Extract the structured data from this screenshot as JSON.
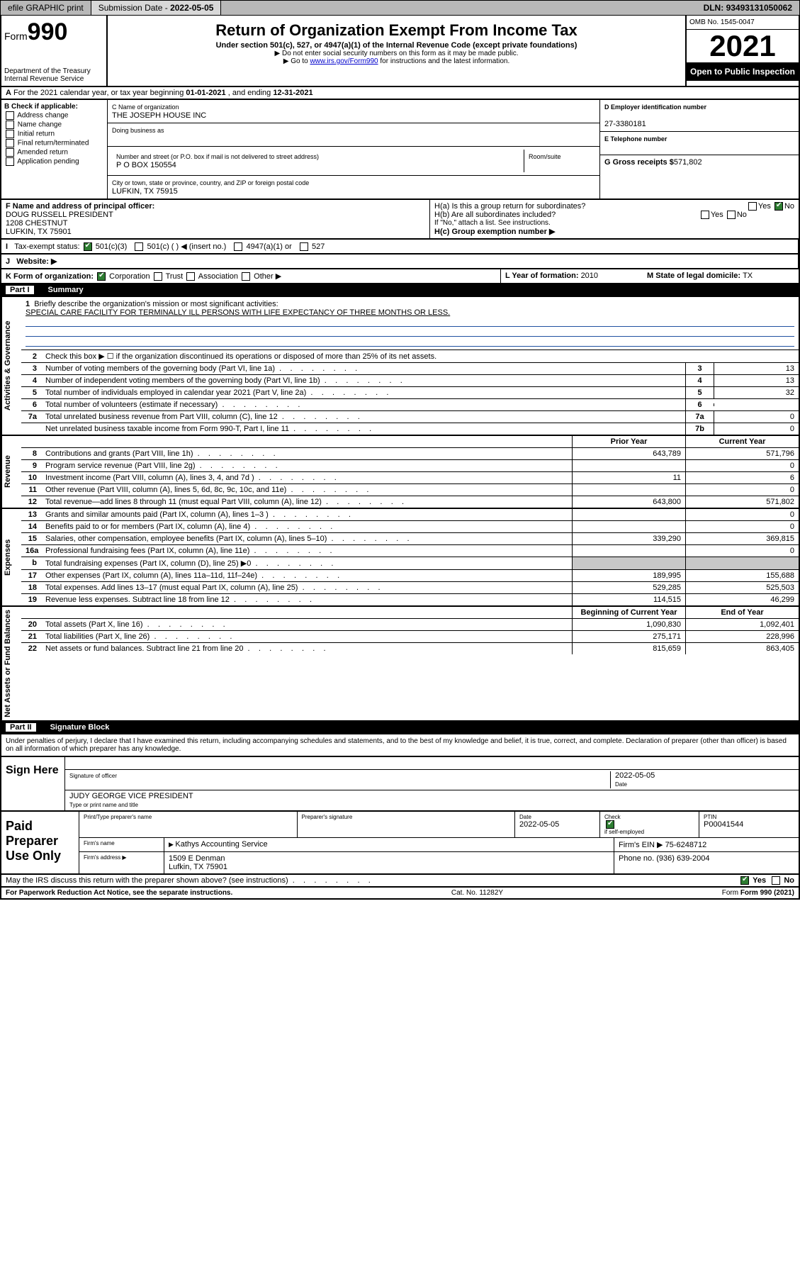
{
  "topbar": {
    "efile": "efile GRAPHIC print",
    "submission_label": "Submission Date - ",
    "submission_date": "2022-05-05",
    "dln_label": "DLN: ",
    "dln": "93493131050062"
  },
  "header": {
    "form_label": "Form",
    "form_number": "990",
    "dept": "Department of the Treasury\nInternal Revenue Service",
    "title": "Return of Organization Exempt From Income Tax",
    "subtitle": "Under section 501(c), 527, or 4947(a)(1) of the Internal Revenue Code (except private foundations)",
    "note1": "▶ Do not enter social security numbers on this form as it may be made public.",
    "note2_pre": "▶ Go to ",
    "note2_link": "www.irs.gov/Form990",
    "note2_post": " for instructions and the latest information.",
    "omb": "OMB No. 1545-0047",
    "year": "2021",
    "open": "Open to Public Inspection"
  },
  "rowA": {
    "text_pre": "For the 2021 calendar year, or tax year beginning ",
    "begin": "01-01-2021",
    "mid": " , and ending ",
    "end": "12-31-2021"
  },
  "colB": {
    "header": "B Check if applicable:",
    "items": [
      "Address change",
      "Name change",
      "Initial return",
      "Final return/terminated",
      "Amended return",
      "Application pending"
    ]
  },
  "colC": {
    "c_label": "C Name of organization",
    "org_name": "THE JOSEPH HOUSE INC",
    "dba_label": "Doing business as",
    "addr_label": "Number and street (or P.O. box if mail is not delivered to street address)",
    "room_label": "Room/suite",
    "addr": "P O BOX 150554",
    "city_label": "City or town, state or province, country, and ZIP or foreign postal code",
    "city": "LUFKIN, TX  75915"
  },
  "colDE": {
    "d_label": "D Employer identification number",
    "ein": "27-3380181",
    "e_label": "E Telephone number",
    "g_label": "G Gross receipts $",
    "g_val": "571,802"
  },
  "rowF": {
    "f_label": "F Name and address of principal officer:",
    "f_name": "DOUG RUSSELL PRESIDENT",
    "f_addr1": "1208 CHESTNUT",
    "f_addr2": "LUFKIN, TX  75901"
  },
  "rowH": {
    "ha": "H(a)  Is this a group return for subordinates?",
    "hb": "H(b)  Are all subordinates included?",
    "hb_note": "If \"No,\" attach a list. See instructions.",
    "hc": "H(c)  Group exemption number ▶",
    "yes": "Yes",
    "no": "No"
  },
  "rowI": {
    "label": "Tax-exempt status:",
    "opts": [
      "501(c)(3)",
      "501(c) (  ) ◀ (insert no.)",
      "4947(a)(1) or",
      "527"
    ]
  },
  "rowJ": {
    "label": "Website: ▶"
  },
  "rowK": {
    "label": "K Form of organization:",
    "opts": [
      "Corporation",
      "Trust",
      "Association",
      "Other ▶"
    ]
  },
  "rowL": {
    "label": "L Year of formation: ",
    "val": "2010"
  },
  "rowM": {
    "label": "M State of legal domicile: ",
    "val": "TX"
  },
  "part1": {
    "label": "Part I",
    "title": "Summary",
    "q1": "Briefly describe the organization's mission or most significant activities:",
    "mission": "SPECIAL CARE FACILITY FOR TERMINALLY ILL PERSONS WITH LIFE EXPECTANCY OF THREE MONTHS OR LESS.",
    "q2": "Check this box ▶ ☐  if the organization discontinued its operations or disposed of more than 25% of its net assets.",
    "rows_simple": [
      {
        "n": "3",
        "t": "Number of voting members of the governing body (Part VI, line 1a)",
        "box": "3",
        "v": "13"
      },
      {
        "n": "4",
        "t": "Number of independent voting members of the governing body (Part VI, line 1b)",
        "box": "4",
        "v": "13"
      },
      {
        "n": "5",
        "t": "Total number of individuals employed in calendar year 2021 (Part V, line 2a)",
        "box": "5",
        "v": "32"
      },
      {
        "n": "6",
        "t": "Total number of volunteers (estimate if necessary)",
        "box": "6",
        "v": ""
      },
      {
        "n": "7a",
        "t": "Total unrelated business revenue from Part VIII, column (C), line 12",
        "box": "7a",
        "v": "0"
      },
      {
        "n": "",
        "t": "Net unrelated business taxable income from Form 990-T, Part I, line 11",
        "box": "7b",
        "v": "0"
      }
    ],
    "col_hdr_py": "Prior Year",
    "col_hdr_cy": "Current Year",
    "sections": [
      {
        "vlabel": "Activities & Governance",
        "type": "simple"
      },
      {
        "vlabel": "Revenue",
        "rows": [
          {
            "n": "8",
            "t": "Contributions and grants (Part VIII, line 1h)",
            "py": "643,789",
            "cy": "571,796"
          },
          {
            "n": "9",
            "t": "Program service revenue (Part VIII, line 2g)",
            "py": "",
            "cy": "0"
          },
          {
            "n": "10",
            "t": "Investment income (Part VIII, column (A), lines 3, 4, and 7d )",
            "py": "11",
            "cy": "6"
          },
          {
            "n": "11",
            "t": "Other revenue (Part VIII, column (A), lines 5, 6d, 8c, 9c, 10c, and 11e)",
            "py": "",
            "cy": "0"
          },
          {
            "n": "12",
            "t": "Total revenue—add lines 8 through 11 (must equal Part VIII, column (A), line 12)",
            "py": "643,800",
            "cy": "571,802"
          }
        ]
      },
      {
        "vlabel": "Expenses",
        "rows": [
          {
            "n": "13",
            "t": "Grants and similar amounts paid (Part IX, column (A), lines 1–3 )",
            "py": "",
            "cy": "0"
          },
          {
            "n": "14",
            "t": "Benefits paid to or for members (Part IX, column (A), line 4)",
            "py": "",
            "cy": "0"
          },
          {
            "n": "15",
            "t": "Salaries, other compensation, employee benefits (Part IX, column (A), lines 5–10)",
            "py": "339,290",
            "cy": "369,815"
          },
          {
            "n": "16a",
            "t": "Professional fundraising fees (Part IX, column (A), line 11e)",
            "py": "",
            "cy": "0"
          },
          {
            "n": "b",
            "t": "Total fundraising expenses (Part IX, column (D), line 25) ▶0",
            "py": "shade",
            "cy": "shade"
          },
          {
            "n": "17",
            "t": "Other expenses (Part IX, column (A), lines 11a–11d, 11f–24e)",
            "py": "189,995",
            "cy": "155,688"
          },
          {
            "n": "18",
            "t": "Total expenses. Add lines 13–17 (must equal Part IX, column (A), line 25)",
            "py": "529,285",
            "cy": "525,503"
          },
          {
            "n": "19",
            "t": "Revenue less expenses. Subtract line 18 from line 12",
            "py": "114,515",
            "cy": "46,299"
          }
        ]
      },
      {
        "vlabel": "Net Assets or Fund Balances",
        "hdr_py": "Beginning of Current Year",
        "hdr_cy": "End of Year",
        "rows": [
          {
            "n": "20",
            "t": "Total assets (Part X, line 16)",
            "py": "1,090,830",
            "cy": "1,092,401"
          },
          {
            "n": "21",
            "t": "Total liabilities (Part X, line 26)",
            "py": "275,171",
            "cy": "228,996"
          },
          {
            "n": "22",
            "t": "Net assets or fund balances. Subtract line 21 from line 20",
            "py": "815,659",
            "cy": "863,405"
          }
        ]
      }
    ]
  },
  "part2": {
    "label": "Part II",
    "title": "Signature Block",
    "intro": "Under penalties of perjury, I declare that I have examined this return, including accompanying schedules and statements, and to the best of my knowledge and belief, it is true, correct, and complete. Declaration of preparer (other than officer) is based on all information of which preparer has any knowledge."
  },
  "sign": {
    "label": "Sign Here",
    "sig_officer_label": "Signature of officer",
    "date": "2022-05-05",
    "date_label": "Date",
    "officer": "JUDY GEORGE  VICE PRESIDENT",
    "officer_label": "Type or print name and title"
  },
  "prep": {
    "label": "Paid Preparer Use Only",
    "r1": {
      "c1_label": "Print/Type preparer's name",
      "c2_label": "Preparer's signature",
      "c3_label": "Date",
      "c3": "2022-05-05",
      "c4_label": "Check",
      "c4_text": "if self-employed",
      "c5_label": "PTIN",
      "c5": "P00041544"
    },
    "r2": {
      "c1_label": "Firm's name",
      "c1": "Kathys Accounting Service",
      "c2_label": "Firm's EIN ▶",
      "c2": "75-6248712"
    },
    "r3": {
      "c1_label": "Firm's address ▶",
      "c1": "1509 E Denman",
      "c1b": "Lufkin, TX  75901",
      "c2_label": "Phone no.",
      "c2": "(936) 639-2004"
    }
  },
  "discuss": {
    "q": "May the IRS discuss this return with the preparer shown above? (see instructions)",
    "yes": "Yes",
    "no": "No"
  },
  "footer": {
    "left": "For Paperwork Reduction Act Notice, see the separate instructions.",
    "mid": "Cat. No. 11282Y",
    "right": "Form 990 (2021)"
  }
}
